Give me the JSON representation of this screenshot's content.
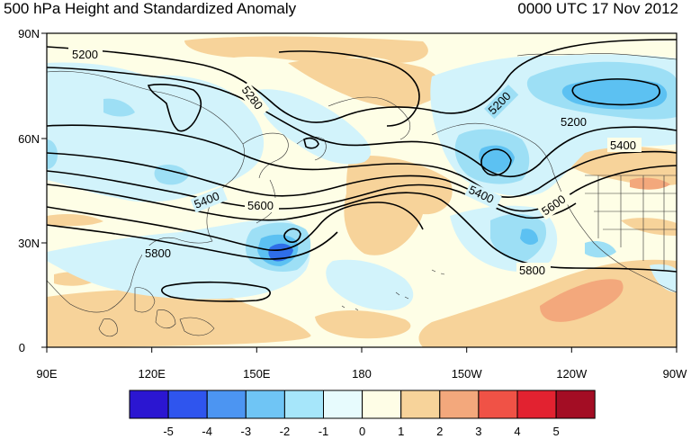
{
  "titles": {
    "left": "500 hPa Height and Standardized Anomaly",
    "right": "0000 UTC 17 Nov 2012"
  },
  "map": {
    "projection": "cylindrical equidistant",
    "lon_range": [
      "90E",
      "90W"
    ],
    "lat_range": [
      "0",
      "90N"
    ],
    "lat_ticks": [
      "90N",
      "60N",
      "30N",
      "0"
    ],
    "lon_ticks": [
      "90E",
      "120E",
      "150E",
      "180",
      "150W",
      "120W",
      "90W"
    ],
    "contour_labels": [
      "5200",
      "5280",
      "5200",
      "5200",
      "5400",
      "5400",
      "5400",
      "5600",
      "5600",
      "5800",
      "5800"
    ],
    "colors": {
      "ocean_base": "#fefee6",
      "anom_pos1": "#f7d39a",
      "anom_pos2": "#f3a87c",
      "anom_neg1": "#d2f3fb",
      "anom_neg2": "#9ddff5",
      "anom_neg3": "#5cc1f2",
      "anom_neg4": "#2f6ee8"
    }
  },
  "colorbar": {
    "labels": [
      "-5",
      "-4",
      "-3",
      "-2",
      "-1",
      "0",
      "1",
      "2",
      "3",
      "4",
      "5"
    ],
    "colors": [
      "#2b16d1",
      "#2f55ee",
      "#4c95f2",
      "#6fc5f5",
      "#a6e6fa",
      "#e7fbfd",
      "#fefde6",
      "#f7d39a",
      "#f3a87c",
      "#f05246",
      "#e22230",
      "#a30d24"
    ]
  }
}
